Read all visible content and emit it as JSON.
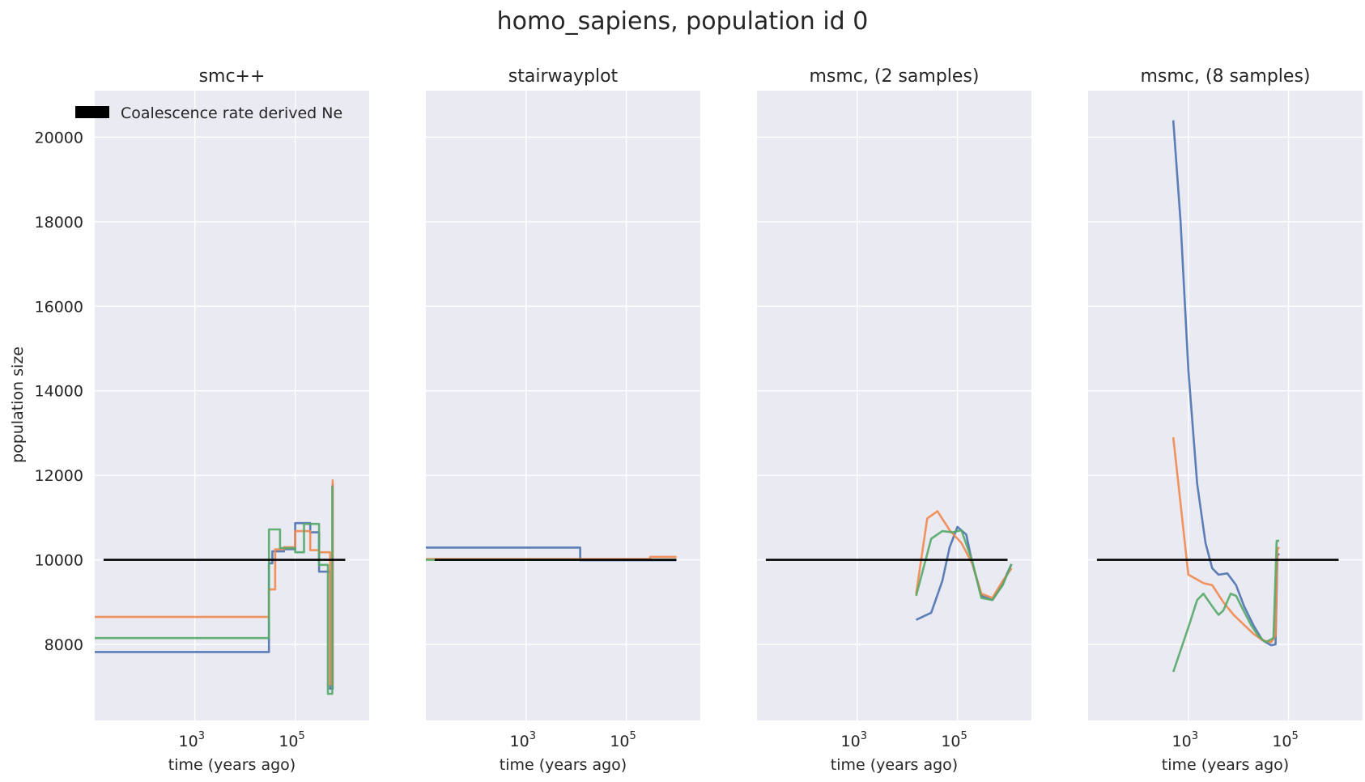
{
  "figure": {
    "title": "homo_sapiens, population id 0",
    "ylabel": "population size",
    "xlabel": "time (years ago)"
  },
  "legend": {
    "label": "Coalescence rate derived Ne",
    "color": "#000000",
    "placement": "upper-left"
  },
  "colors": {
    "blue": "#4c72b0",
    "orange": "#f0884e",
    "green": "#55a868",
    "reference": "#000000"
  },
  "chart_data": [
    {
      "type": "line",
      "title": "smc++",
      "x_scale": "log",
      "xlim": [
        10,
        3000000
      ],
      "ylim": [
        6200,
        21100
      ],
      "xticks": [
        {
          "base": "10",
          "exp": "3",
          "value": 1000
        },
        {
          "base": "10",
          "exp": "5",
          "value": 100000
        }
      ],
      "yticks": [
        8000,
        10000,
        12000,
        14000,
        16000,
        18000,
        20000
      ],
      "grid": true,
      "step": true,
      "reference": {
        "x": [
          15,
          1000000
        ],
        "y": [
          10000,
          10000
        ]
      },
      "series": [
        {
          "color": "blue",
          "x": [
            10,
            30000,
            35000,
            60000,
            100000,
            200000,
            300000,
            350000,
            500000,
            560000
          ],
          "y": [
            7820,
            9920,
            10200,
            10250,
            10870,
            10650,
            9720,
            9720,
            6950,
            11800
          ]
        },
        {
          "color": "orange",
          "x": [
            10,
            30000,
            40000,
            60000,
            100000,
            200000,
            300000,
            350000,
            500000,
            560000
          ],
          "y": [
            8650,
            9300,
            10250,
            10300,
            10680,
            10230,
            10180,
            10180,
            7050,
            11900
          ]
        },
        {
          "color": "green",
          "x": [
            10,
            30000,
            50000,
            100000,
            150000,
            200000,
            300000,
            450000,
            550000
          ],
          "y": [
            8150,
            10720,
            10280,
            10180,
            10850,
            10850,
            9880,
            6830,
            11750
          ]
        }
      ]
    },
    {
      "type": "line",
      "title": "stairwayplot",
      "x_scale": "log",
      "xlim": [
        10,
        3000000
      ],
      "ylim": [
        6200,
        21100
      ],
      "xticks": [
        {
          "base": "10",
          "exp": "3",
          "value": 1000
        },
        {
          "base": "10",
          "exp": "5",
          "value": 100000
        }
      ],
      "yticks": [
        8000,
        10000,
        12000,
        14000,
        16000,
        18000,
        20000
      ],
      "grid": true,
      "step": true,
      "reference": {
        "x": [
          15,
          1000000
        ],
        "y": [
          10000,
          10000
        ]
      },
      "series": [
        {
          "color": "blue",
          "x": [
            10,
            12000,
            1000000
          ],
          "y": [
            10290,
            9990,
            9990
          ]
        },
        {
          "color": "orange",
          "x": [
            10,
            50000,
            300000,
            1000000
          ],
          "y": [
            10020,
            10020,
            10070,
            10070
          ]
        },
        {
          "color": "green",
          "x": [
            10,
            1000000
          ],
          "y": [
            10000,
            10000
          ]
        }
      ]
    },
    {
      "type": "line",
      "title": "msmc, (2 samples)",
      "x_scale": "log",
      "xlim": [
        10,
        3000000
      ],
      "ylim": [
        6200,
        21100
      ],
      "xticks": [
        {
          "base": "10",
          "exp": "3",
          "value": 1000
        },
        {
          "base": "10",
          "exp": "5",
          "value": 100000
        }
      ],
      "yticks": [
        8000,
        10000,
        12000,
        14000,
        16000,
        18000,
        20000
      ],
      "grid": true,
      "step": false,
      "reference": {
        "x": [
          15,
          1000000
        ],
        "y": [
          10000,
          10000
        ]
      },
      "series": [
        {
          "color": "blue",
          "x": [
            15000,
            30000,
            50000,
            70000,
            100000,
            150000,
            200000,
            300000,
            500000,
            800000,
            1200000
          ],
          "y": [
            8580,
            8750,
            9500,
            10300,
            10780,
            10600,
            9900,
            9150,
            9050,
            9450,
            9900
          ]
        },
        {
          "color": "orange",
          "x": [
            15000,
            25000,
            40000,
            70000,
            120000,
            200000,
            300000,
            500000,
            800000,
            1200000
          ],
          "y": [
            9200,
            10980,
            11150,
            10700,
            10400,
            9900,
            9200,
            9100,
            9500,
            9800
          ]
        },
        {
          "color": "green",
          "x": [
            15000,
            30000,
            50000,
            80000,
            120000,
            200000,
            300000,
            500000,
            800000,
            1200000
          ],
          "y": [
            9150,
            10500,
            10680,
            10650,
            10700,
            9950,
            9100,
            9050,
            9400,
            9900
          ]
        }
      ]
    },
    {
      "type": "line",
      "title": "msmc, (8 samples)",
      "x_scale": "log",
      "xlim": [
        10,
        3000000
      ],
      "ylim": [
        6200,
        21100
      ],
      "xticks": [
        {
          "base": "10",
          "exp": "3",
          "value": 1000
        },
        {
          "base": "10",
          "exp": "5",
          "value": 100000
        }
      ],
      "yticks": [
        8000,
        10000,
        12000,
        14000,
        16000,
        18000,
        20000
      ],
      "grid": true,
      "step": false,
      "reference": {
        "x": [
          15,
          1000000
        ],
        "y": [
          10000,
          10000
        ]
      },
      "series": [
        {
          "color": "blue",
          "x": [
            500,
            700,
            1000,
            1500,
            2200,
            3000,
            4000,
            6000,
            9000,
            13000,
            20000,
            30000,
            45000,
            55000,
            60000,
            65000
          ],
          "y": [
            20400,
            18000,
            14500,
            11800,
            10400,
            9800,
            9650,
            9680,
            9400,
            8900,
            8450,
            8100,
            7980,
            8000,
            10100,
            10150
          ]
        },
        {
          "color": "orange",
          "x": [
            500,
            1000,
            2000,
            3000,
            5000,
            8000,
            12000,
            20000,
            30000,
            45000,
            55000,
            60000,
            65000
          ],
          "y": [
            12900,
            9650,
            9450,
            9400,
            9000,
            8700,
            8500,
            8250,
            8100,
            8050,
            8200,
            10250,
            10300
          ]
        },
        {
          "color": "green",
          "x": [
            500,
            1000,
            1500,
            2000,
            3000,
            4000,
            5000,
            7000,
            9000,
            12000,
            18000,
            25000,
            35000,
            50000,
            58000,
            65000
          ],
          "y": [
            7350,
            8400,
            9050,
            9200,
            8900,
            8700,
            8800,
            9200,
            9150,
            8850,
            8450,
            8200,
            8050,
            8150,
            10450,
            10450
          ]
        }
      ]
    }
  ]
}
